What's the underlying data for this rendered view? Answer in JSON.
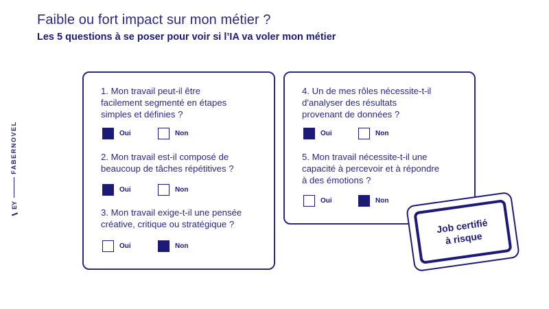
{
  "header": {
    "title": "Faible ou fort impact sur mon métier ?",
    "subtitle": "Les 5 questions à se poser pour voir si l’IA va voler mon métier"
  },
  "brand": {
    "fabernovel": "FABERNOVEL",
    "ey": "EY"
  },
  "questions": [
    {
      "lines": [
        "1. Mon travail peut-il être",
        "facilement segmenté en étapes",
        "simples et définies ?"
      ],
      "options": [
        {
          "label": "Oui",
          "checked": true
        },
        {
          "label": "Non",
          "checked": false
        }
      ]
    },
    {
      "lines": [
        "2. Mon travail est-il composé de",
        "beaucoup de tâches répétitives ?"
      ],
      "options": [
        {
          "label": "Oui",
          "checked": true
        },
        {
          "label": "Non",
          "checked": false
        }
      ]
    },
    {
      "lines": [
        "3. Mon travail exige-t-il une pensée",
        "créative, critique ou stratégique ?"
      ],
      "options": [
        {
          "label": "Oui",
          "checked": false
        },
        {
          "label": "Non",
          "checked": true
        }
      ]
    },
    {
      "lines": [
        "4. Un de mes rôles nécessite-t-il",
        "d'analyser des résultats",
        "provenant de données ?"
      ],
      "options": [
        {
          "label": "Oui",
          "checked": true
        },
        {
          "label": "Non",
          "checked": false
        }
      ]
    },
    {
      "lines": [
        "5. Mon travail nécessite-t-il une",
        "capacité à percevoir et à répondre",
        "à des émotions ?"
      ],
      "options": [
        {
          "label": "Oui",
          "checked": false
        },
        {
          "label": "Non",
          "checked": true
        }
      ]
    }
  ],
  "stamp": {
    "line1": "Job certifié",
    "line2": "à risque"
  },
  "colors": {
    "primary": "#1c1977",
    "text": "#2a2785",
    "background": "#ffffff"
  }
}
